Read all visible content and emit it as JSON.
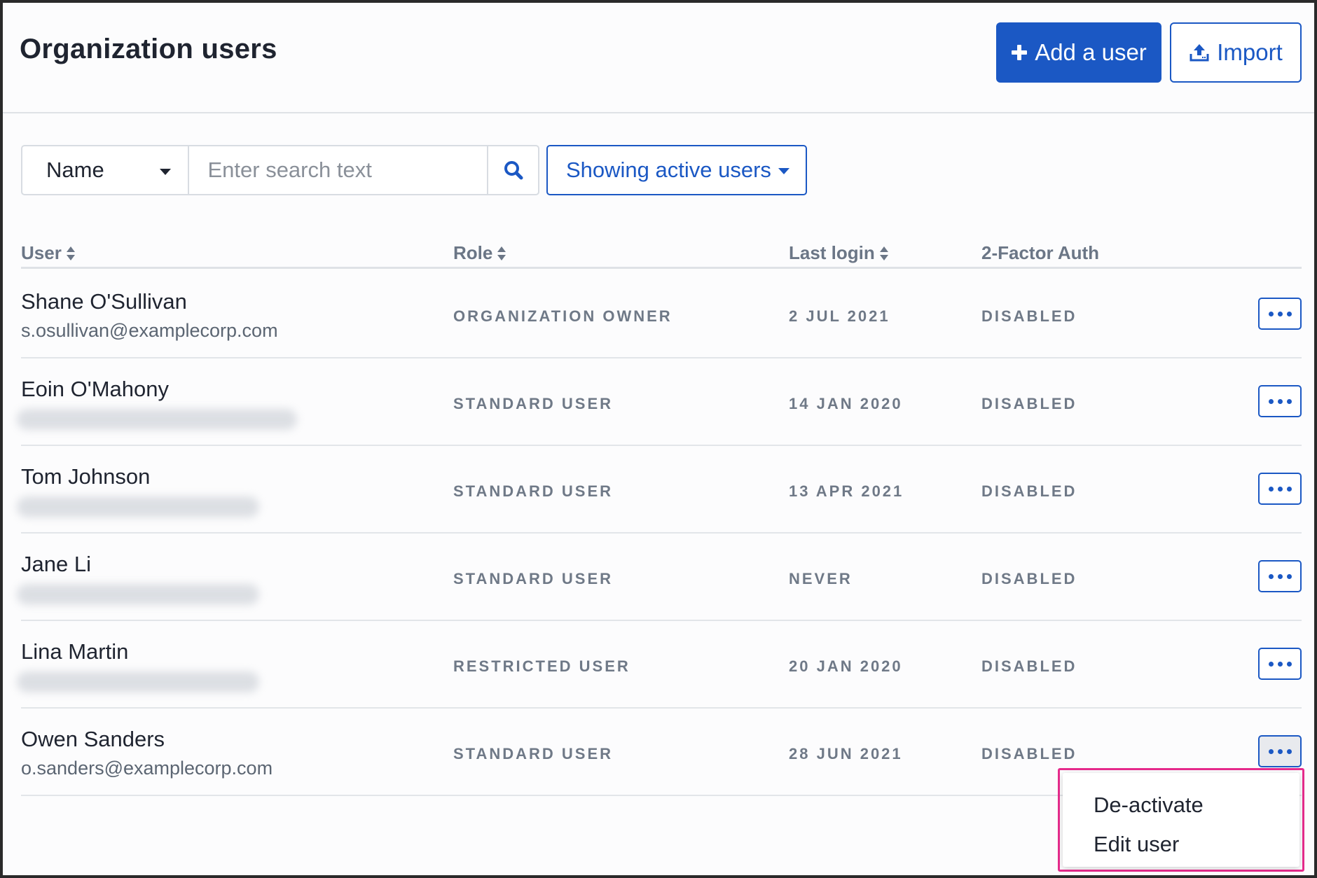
{
  "header": {
    "title": "Organization users",
    "add_user_label": "Add a user",
    "import_label": "Import"
  },
  "search": {
    "field_selected": "Name",
    "placeholder": "Enter search text",
    "value": "",
    "filter_label": "Showing active users"
  },
  "table": {
    "columns": [
      {
        "label": "User",
        "sortable": true
      },
      {
        "label": "Role",
        "sortable": true
      },
      {
        "label": "Last login",
        "sortable": true
      },
      {
        "label": "2-Factor Auth",
        "sortable": false
      }
    ],
    "rows": [
      {
        "name": "Shane O'Sullivan",
        "email": "s.osullivan@examplecorp.com",
        "email_blurred": false,
        "role": "ORGANIZATION OWNER",
        "last_login": "2 JUL 2021",
        "two_factor": "DISABLED"
      },
      {
        "name": "Eoin O'Mahony",
        "email": "",
        "email_blurred": true,
        "role": "STANDARD USER",
        "last_login": "14 JAN 2020",
        "two_factor": "DISABLED"
      },
      {
        "name": "Tom Johnson",
        "email": "",
        "email_blurred": true,
        "role": "STANDARD USER",
        "last_login": "13 APR 2021",
        "two_factor": "DISABLED"
      },
      {
        "name": "Jane Li",
        "email": "",
        "email_blurred": true,
        "role": "STANDARD USER",
        "last_login": "NEVER",
        "two_factor": "DISABLED"
      },
      {
        "name": "Lina Martin",
        "email": "",
        "email_blurred": true,
        "role": "RESTRICTED USER",
        "last_login": "20 JAN 2020",
        "two_factor": "DISABLED"
      },
      {
        "name": "Owen Sanders",
        "email": "o.sanders@examplecorp.com",
        "email_blurred": false,
        "role": "STANDARD USER",
        "last_login": "28 JUN 2021",
        "two_factor": "DISABLED"
      }
    ]
  },
  "row_menu": {
    "open_for_row": 5,
    "items": [
      "De-activate",
      "Edit user"
    ]
  },
  "icons": {
    "add": "plus-icon",
    "import": "upload-icon",
    "search": "search-icon",
    "sort": "sort-icon",
    "more": "more-horizontal-icon",
    "select_caret": "caret-down-icon"
  },
  "colors": {
    "primary": "#1b58c4",
    "highlight_border": "#e62b8c",
    "text_muted": "#6f7987"
  }
}
